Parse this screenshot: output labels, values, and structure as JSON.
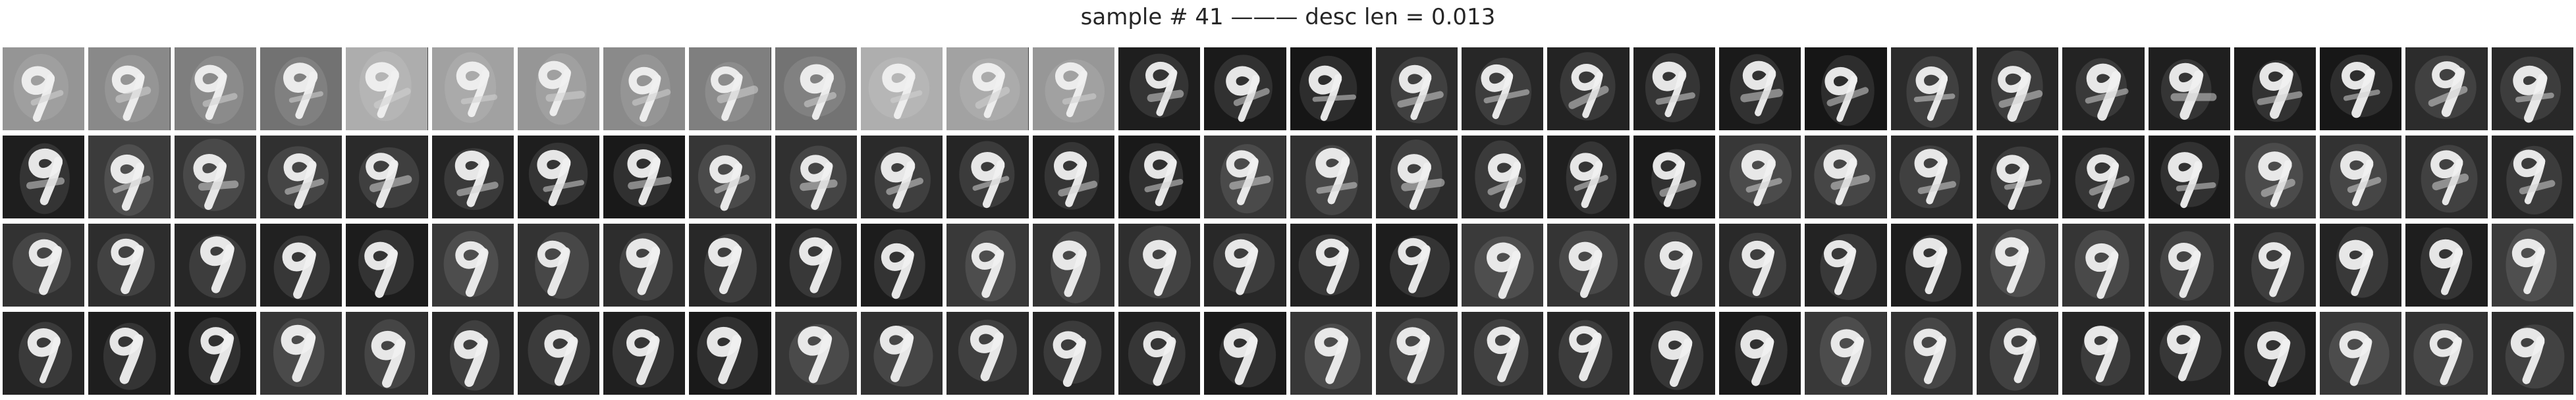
{
  "title": "sample # 41 ——— desc len = 0.013",
  "grid": {
    "rows": 4,
    "columns": 30
  }
}
